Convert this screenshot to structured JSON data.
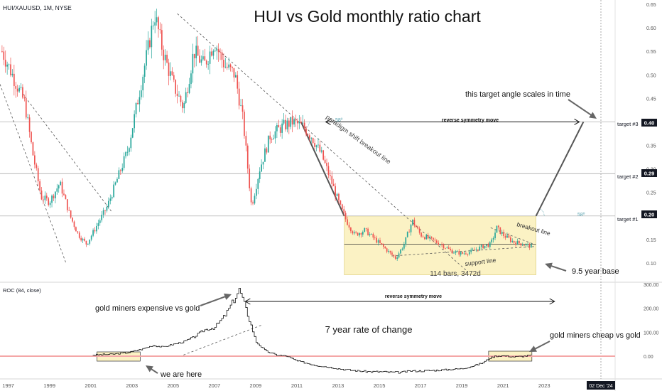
{
  "header": {
    "symbol": "HUI/XAUUSD, 1M, NYSE",
    "title": "HUI vs Gold monthly ratio chart"
  },
  "chart_data": [
    {
      "type": "candlestick",
      "title": "HUI vs Gold monthly ratio chart",
      "symbol": "HUI/XAUUSD, 1M, NYSE",
      "y_ticks": [
        "0.65",
        "0.60",
        "0.55",
        "0.50",
        "0.45",
        "0.40",
        "0.35",
        "0.30",
        "0.25",
        "0.20",
        "0.15",
        "0.10"
      ],
      "ylim": [
        0.07,
        0.66
      ],
      "x_range": [
        1996.6,
        2026.3
      ],
      "price_path": [
        [
          1996.7,
          0.55
        ],
        [
          1997.2,
          0.5
        ],
        [
          1997.8,
          0.44
        ],
        [
          1998.2,
          0.33
        ],
        [
          1998.6,
          0.24
        ],
        [
          1999.0,
          0.23
        ],
        [
          1999.5,
          0.27
        ],
        [
          2000.0,
          0.2
        ],
        [
          2000.4,
          0.16
        ],
        [
          2000.8,
          0.14
        ],
        [
          2001.3,
          0.18
        ],
        [
          2001.8,
          0.22
        ],
        [
          2002.3,
          0.28
        ],
        [
          2002.8,
          0.34
        ],
        [
          2003.3,
          0.45
        ],
        [
          2003.8,
          0.56
        ],
        [
          2004.1,
          0.63
        ],
        [
          2004.5,
          0.55
        ],
        [
          2005.0,
          0.48
        ],
        [
          2005.5,
          0.43
        ],
        [
          2006.0,
          0.55
        ],
        [
          2006.5,
          0.52
        ],
        [
          2007.0,
          0.57
        ],
        [
          2007.5,
          0.52
        ],
        [
          2008.0,
          0.5
        ],
        [
          2008.4,
          0.4
        ],
        [
          2008.8,
          0.22
        ],
        [
          2009.2,
          0.3
        ],
        [
          2009.7,
          0.37
        ],
        [
          2010.3,
          0.39
        ],
        [
          2010.8,
          0.4
        ],
        [
          2011.3,
          0.39
        ],
        [
          2011.7,
          0.37
        ],
        [
          2012.2,
          0.33
        ],
        [
          2012.7,
          0.27
        ],
        [
          2013.1,
          0.22
        ],
        [
          2013.4,
          0.19
        ],
        [
          2013.8,
          0.16
        ],
        [
          2014.3,
          0.17
        ],
        [
          2014.8,
          0.15
        ],
        [
          2015.3,
          0.13
        ],
        [
          2015.8,
          0.11
        ],
        [
          2016.2,
          0.14
        ],
        [
          2016.6,
          0.19
        ],
        [
          2017.0,
          0.16
        ],
        [
          2017.5,
          0.15
        ],
        [
          2018.0,
          0.14
        ],
        [
          2018.5,
          0.125
        ],
        [
          2019.0,
          0.12
        ],
        [
          2019.5,
          0.125
        ],
        [
          2020.0,
          0.135
        ],
        [
          2020.4,
          0.14
        ],
        [
          2020.7,
          0.175
        ],
        [
          2021.0,
          0.16
        ],
        [
          2021.5,
          0.145
        ],
        [
          2022.0,
          0.14
        ],
        [
          2022.4,
          0.135
        ]
      ],
      "horizontal_levels": [
        0.4,
        0.29,
        0.2,
        0.14
      ],
      "price_labels": [
        {
          "value": "0.40",
          "target": "target #3"
        },
        {
          "value": "0.29",
          "target": "target #2"
        },
        {
          "value": "0.20",
          "target": "target #1"
        }
      ],
      "annotations": [
        "this target angle scales in time",
        "reverse symmetry move",
        "paradigm shift breakout line",
        "breakout line",
        "support line",
        "114 bars, 3472d",
        "9.5 year base",
        "58º",
        "58º"
      ]
    },
    {
      "type": "line",
      "title": "ROC (84, close)",
      "y_ticks": [
        "300.00",
        "200.00",
        "100.00",
        "0.00"
      ],
      "ylim": [
        -80,
        300
      ],
      "zero_line_color": "#f4a7a7",
      "x_path": [
        [
          2001.1,
          5
        ],
        [
          2002.0,
          8
        ],
        [
          2002.8,
          15
        ],
        [
          2003.5,
          30
        ],
        [
          2004.0,
          45
        ],
        [
          2004.5,
          38
        ],
        [
          2005.0,
          50
        ],
        [
          2005.5,
          60
        ],
        [
          2006.0,
          80
        ],
        [
          2006.5,
          110
        ],
        [
          2007.0,
          120
        ],
        [
          2007.5,
          170
        ],
        [
          2007.9,
          230
        ],
        [
          2008.2,
          280
        ],
        [
          2008.5,
          200
        ],
        [
          2008.8,
          120
        ],
        [
          2009.0,
          60
        ],
        [
          2009.5,
          20
        ],
        [
          2010.0,
          5
        ],
        [
          2010.5,
          0
        ],
        [
          2011.0,
          -20
        ],
        [
          2011.5,
          -30
        ],
        [
          2012.0,
          -40
        ],
        [
          2012.5,
          -45
        ],
        [
          2013.0,
          -52
        ],
        [
          2013.5,
          -58
        ],
        [
          2014.0,
          -62
        ],
        [
          2014.5,
          -65
        ],
        [
          2015.0,
          -65
        ],
        [
          2015.5,
          -67
        ],
        [
          2016.0,
          -68
        ],
        [
          2016.5,
          -62
        ],
        [
          2017.0,
          -62
        ],
        [
          2017.5,
          -60
        ],
        [
          2018.0,
          -58
        ],
        [
          2018.5,
          -55
        ],
        [
          2019.0,
          -52
        ],
        [
          2019.5,
          -42
        ],
        [
          2020.0,
          -28
        ],
        [
          2020.3,
          -10
        ],
        [
          2020.6,
          0
        ],
        [
          2021.0,
          2
        ],
        [
          2021.5,
          -3
        ],
        [
          2022.0,
          0
        ],
        [
          2022.4,
          5
        ]
      ],
      "annotations": [
        "gold miners expensive vs gold",
        "reverse symmetry move",
        "7 year rate of change",
        "gold miners cheap vs gold",
        "we are here"
      ]
    }
  ],
  "x_axis": {
    "ticks": [
      "1997",
      "1999",
      "2001",
      "2003",
      "2005",
      "2007",
      "2009",
      "2011",
      "2013",
      "2015",
      "2017",
      "2019",
      "2021",
      "2023"
    ],
    "cursor_label": "02 Dec '24"
  },
  "colors": {
    "up": "#26a69a",
    "down": "#ef5350",
    "base_box": "#fbf2c4",
    "accent": "#5ba3b0"
  }
}
